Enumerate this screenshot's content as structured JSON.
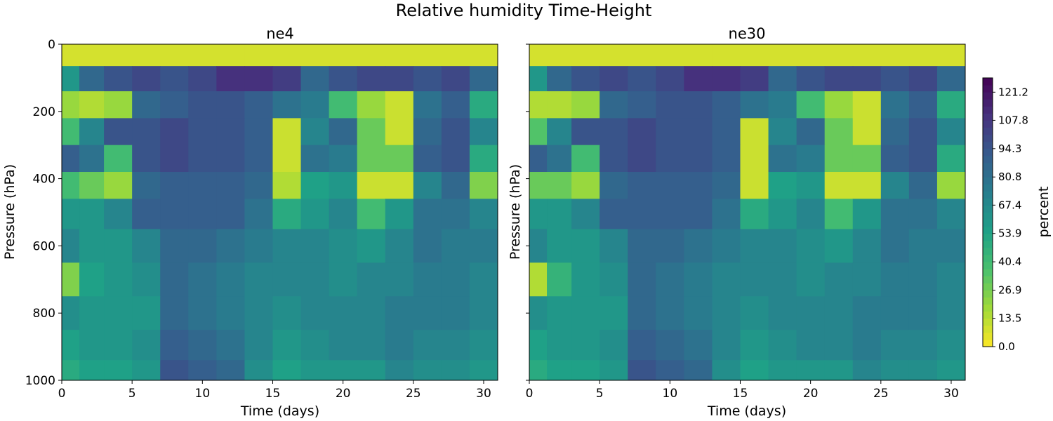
{
  "figure": {
    "title": "Relative humidity Time-Height"
  },
  "colors": {
    "viridis_reversed_stops": [
      "#fde725",
      "#a0da39",
      "#4ac16d",
      "#1fa187",
      "#277f8e",
      "#365c8d",
      "#46327e",
      "#440154"
    ]
  },
  "chart_data": [
    {
      "type": "heatmap",
      "title": "ne4",
      "xlabel": "Time (days)",
      "ylabel": "Pressure (hPa)",
      "xlim": [
        0,
        31
      ],
      "ylim": [
        1000,
        0
      ],
      "xticks": [
        0,
        5,
        10,
        15,
        20,
        25,
        30
      ],
      "yticks": [
        0,
        200,
        400,
        600,
        800,
        1000
      ],
      "grid": false,
      "approximate_pressure_rows_hPa": [
        30,
        100,
        180,
        260,
        340,
        420,
        500,
        600,
        700,
        800,
        900,
        980
      ],
      "approximate_time_cols_days": [
        0.5,
        2,
        4,
        6,
        8,
        10,
        12,
        14,
        16,
        18,
        20,
        22,
        24,
        26,
        28,
        30
      ],
      "approximate_values_percent": [
        [
          8,
          8,
          8,
          8,
          8,
          8,
          8,
          8,
          8,
          8,
          8,
          8,
          8,
          8,
          8,
          8
        ],
        [
          60,
          85,
          95,
          100,
          95,
          100,
          110,
          110,
          105,
          85,
          95,
          100,
          100,
          95,
          100,
          85
        ],
        [
          20,
          15,
          20,
          85,
          90,
          95,
          95,
          90,
          80,
          75,
          40,
          20,
          10,
          80,
          90,
          50
        ],
        [
          40,
          70,
          95,
          95,
          100,
          95,
          95,
          90,
          10,
          70,
          85,
          30,
          10,
          85,
          95,
          70
        ],
        [
          90,
          80,
          40,
          95,
          100,
          95,
          95,
          90,
          10,
          80,
          75,
          30,
          30,
          90,
          95,
          50
        ],
        [
          40,
          30,
          20,
          85,
          90,
          90,
          90,
          85,
          15,
          55,
          60,
          10,
          10,
          70,
          85,
          25
        ],
        [
          60,
          60,
          70,
          90,
          90,
          90,
          90,
          80,
          50,
          60,
          70,
          40,
          60,
          80,
          80,
          70
        ],
        [
          70,
          60,
          60,
          70,
          85,
          85,
          80,
          75,
          70,
          70,
          65,
          60,
          70,
          80,
          75,
          75
        ],
        [
          25,
          55,
          60,
          65,
          85,
          80,
          75,
          70,
          70,
          70,
          65,
          70,
          70,
          75,
          75,
          70
        ],
        [
          65,
          60,
          60,
          60,
          85,
          80,
          75,
          70,
          65,
          70,
          70,
          70,
          75,
          75,
          75,
          70
        ],
        [
          55,
          60,
          60,
          65,
          90,
          85,
          80,
          70,
          60,
          65,
          70,
          70,
          75,
          70,
          70,
          65
        ],
        [
          50,
          55,
          55,
          60,
          95,
          90,
          85,
          65,
          55,
          60,
          60,
          60,
          70,
          65,
          65,
          60
        ]
      ]
    },
    {
      "type": "heatmap",
      "title": "ne30",
      "xlabel": "Time (days)",
      "ylabel": "Pressure (hPa)",
      "xlim": [
        0,
        31
      ],
      "ylim": [
        1000,
        0
      ],
      "xticks": [
        0,
        5,
        10,
        15,
        20,
        25,
        30
      ],
      "yticks": [
        0,
        200,
        400,
        600,
        800,
        1000
      ],
      "grid": false,
      "approximate_pressure_rows_hPa": [
        30,
        100,
        180,
        260,
        340,
        420,
        500,
        600,
        700,
        800,
        900,
        980
      ],
      "approximate_time_cols_days": [
        0.5,
        2,
        4,
        6,
        8,
        10,
        12,
        14,
        16,
        18,
        20,
        22,
        24,
        26,
        28,
        30
      ],
      "approximate_values_percent": [
        [
          8,
          8,
          8,
          8,
          8,
          8,
          8,
          8,
          8,
          8,
          8,
          8,
          8,
          8,
          8,
          8
        ],
        [
          60,
          85,
          95,
          100,
          95,
          100,
          110,
          110,
          105,
          85,
          95,
          100,
          100,
          95,
          100,
          85
        ],
        [
          15,
          15,
          20,
          85,
          90,
          95,
          95,
          90,
          80,
          75,
          40,
          20,
          10,
          80,
          90,
          50
        ],
        [
          35,
          70,
          95,
          95,
          100,
          95,
          95,
          90,
          10,
          70,
          85,
          30,
          10,
          85,
          95,
          70
        ],
        [
          90,
          80,
          40,
          95,
          100,
          95,
          95,
          90,
          10,
          80,
          75,
          30,
          30,
          90,
          95,
          50
        ],
        [
          30,
          30,
          20,
          85,
          90,
          90,
          90,
          85,
          10,
          55,
          60,
          10,
          10,
          70,
          85,
          20
        ],
        [
          60,
          60,
          70,
          90,
          90,
          90,
          90,
          80,
          50,
          60,
          70,
          40,
          60,
          80,
          80,
          70
        ],
        [
          70,
          60,
          60,
          70,
          85,
          85,
          80,
          75,
          70,
          70,
          65,
          60,
          70,
          80,
          75,
          75
        ],
        [
          15,
          45,
          60,
          65,
          85,
          80,
          75,
          70,
          70,
          70,
          65,
          70,
          70,
          75,
          75,
          70
        ],
        [
          65,
          60,
          60,
          60,
          85,
          80,
          75,
          70,
          65,
          70,
          70,
          70,
          75,
          75,
          75,
          70
        ],
        [
          55,
          60,
          60,
          65,
          90,
          85,
          80,
          70,
          60,
          65,
          70,
          70,
          75,
          70,
          70,
          65
        ],
        [
          50,
          55,
          55,
          60,
          95,
          90,
          85,
          65,
          55,
          60,
          60,
          60,
          70,
          65,
          65,
          60
        ]
      ]
    }
  ],
  "colorbar": {
    "label": "percent",
    "range": [
      0.0,
      128.0
    ],
    "ticks": [
      "0.0",
      "13.5",
      "26.9",
      "40.4",
      "53.9",
      "67.4",
      "80.8",
      "94.3",
      "107.8",
      "121.2"
    ]
  }
}
